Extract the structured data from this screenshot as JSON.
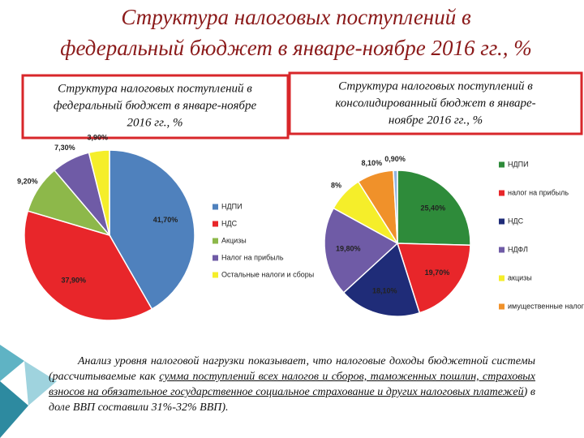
{
  "title": [
    "Структура налоговых поступлений в",
    "федеральный бюджет в январе-ноябре 2016 гг., %"
  ],
  "chart_data": [
    {
      "type": "pie",
      "title": [
        "Структура налоговых поступлений в",
        "федеральный бюджет в январе-ноябре",
        "2016 гг., %"
      ],
      "categories": [
        "НДПИ",
        "НДС",
        "Акцизы",
        "Налог на прибыль",
        "Остальные налоги и сборы"
      ],
      "values": [
        41.7,
        37.9,
        9.2,
        7.3,
        3.9
      ],
      "value_labels": [
        "41,70%",
        "37,90%",
        "9,20%",
        "7,30%",
        "3,90%"
      ],
      "colors": [
        "#4f81bd",
        "#e8262a",
        "#8db84a",
        "#6f5ba6",
        "#f5ee2a"
      ]
    },
    {
      "type": "pie",
      "title": [
        "Структура налоговых поступлений в",
        "консолидированный бюджет в январе-",
        "ноябре 2016 гг., %"
      ],
      "categories": [
        "НДПИ",
        "налог на прибыль",
        "НДС",
        "НДФЛ",
        "акцизы",
        "имущественные налоги",
        null
      ],
      "values": [
        25.4,
        19.7,
        18.1,
        19.8,
        8,
        8.1,
        0.9
      ],
      "value_labels": [
        "25,40%",
        "19,70%",
        "18,10%",
        "19,80%",
        "8%",
        "8,10%",
        "0,90%"
      ],
      "colors": [
        "#2e8b3a",
        "#e8262a",
        "#1f2c78",
        "#6f5ba6",
        "#f5ee2a",
        "#f0912a",
        "#8fb3e0"
      ]
    }
  ],
  "text": [
    "Анализ уровня налоговой нагрузки показывает, что налоговые доходы бюджетной системы (рассчитываемые как ",
    "сумма поступлений всех налогов и сборов, таможенных пошлин, страховых взносов на обязательное государственное социальное страхование и других налоговых платежей",
    ") в доле ВВП составили 31%-32% ВВП)."
  ]
}
